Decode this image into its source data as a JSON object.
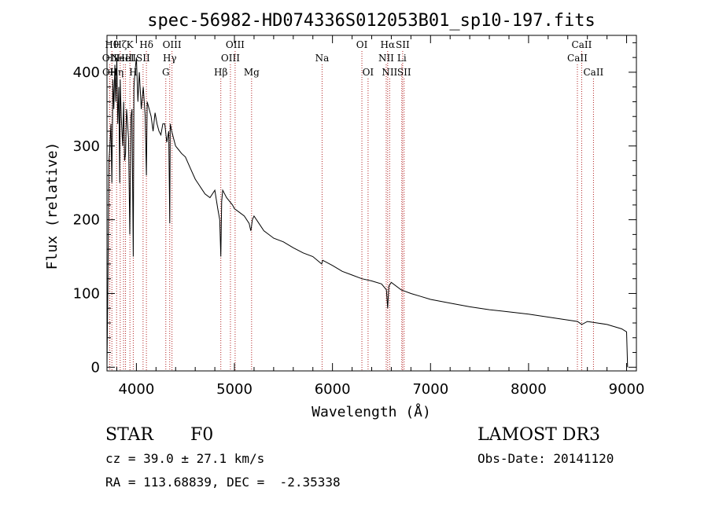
{
  "chart_data": {
    "type": "line",
    "title": "spec-56982-HD074336S012053B01_sp10-197.fits",
    "xlabel": "Wavelength (Å)",
    "ylabel": "Flux (relative)",
    "xlim": [
      3700,
      9100
    ],
    "ylim": [
      -5,
      450
    ],
    "xticks": [
      4000,
      5000,
      6000,
      7000,
      8000,
      9000
    ],
    "yticks": [
      0,
      100,
      200,
      300,
      400
    ],
    "series": [
      {
        "name": "spectrum",
        "x": [
          3700,
          3710,
          3720,
          3730,
          3740,
          3750,
          3760,
          3770,
          3780,
          3790,
          3800,
          3810,
          3820,
          3830,
          3835,
          3845,
          3860,
          3870,
          3880,
          3889,
          3900,
          3910,
          3920,
          3933,
          3945,
          3955,
          3960,
          3968,
          3975,
          3985,
          4000,
          4015,
          4030,
          4050,
          4070,
          4090,
          4102,
          4110,
          4130,
          4150,
          4170,
          4190,
          4210,
          4230,
          4250,
          4270,
          4290,
          4310,
          4330,
          4340,
          4345,
          4360,
          4380,
          4400,
          4430,
          4460,
          4500,
          4550,
          4600,
          4650,
          4700,
          4750,
          4800,
          4830,
          4850,
          4861,
          4870,
          4880,
          4900,
          4920,
          4950,
          4980,
          5000,
          5050,
          5100,
          5150,
          5167,
          5173,
          5183,
          5200,
          5250,
          5300,
          5400,
          5500,
          5600,
          5700,
          5800,
          5890,
          5900,
          6000,
          6100,
          6200,
          6300,
          6400,
          6500,
          6550,
          6563,
          6575,
          6600,
          6700,
          6800,
          6900,
          7000,
          7200,
          7400,
          7600,
          7800,
          8000,
          8200,
          8400,
          8500,
          8542,
          8600,
          8700,
          8800,
          8900,
          8950,
          9000,
          9010
        ],
        "y": [
          0,
          120,
          280,
          300,
          330,
          250,
          390,
          350,
          410,
          360,
          420,
          330,
          380,
          250,
          390,
          340,
          300,
          360,
          280,
          290,
          350,
          330,
          310,
          180,
          340,
          350,
          270,
          150,
          380,
          400,
          420,
          360,
          400,
          350,
          380,
          340,
          260,
          360,
          350,
          340,
          320,
          345,
          330,
          320,
          315,
          330,
          330,
          305,
          320,
          195,
          330,
          320,
          310,
          300,
          295,
          290,
          285,
          270,
          255,
          245,
          235,
          230,
          240,
          215,
          200,
          150,
          225,
          240,
          235,
          230,
          225,
          220,
          215,
          210,
          205,
          195,
          185,
          190,
          200,
          205,
          195,
          185,
          175,
          170,
          162,
          155,
          150,
          140,
          145,
          138,
          130,
          125,
          120,
          117,
          113,
          105,
          80,
          110,
          115,
          105,
          100,
          96,
          92,
          87,
          82,
          78,
          75,
          72,
          68,
          64,
          62,
          58,
          62,
          60,
          58,
          54,
          52,
          48,
          0
        ]
      }
    ],
    "lines": [
      {
        "w": 3727,
        "label": "OII",
        "row": 2
      },
      {
        "w": 3729,
        "label": "OII",
        "row": 3
      },
      {
        "w": 3750,
        "label": "Hθ",
        "row": 1
      },
      {
        "w": 3798,
        "label": "Hη",
        "row": 3
      },
      {
        "w": 3835,
        "label": "Hζ",
        "row": 1
      },
      {
        "w": 3869,
        "label": "NeIII",
        "row": 2
      },
      {
        "w": 3889,
        "label": "HeI",
        "row": 2
      },
      {
        "w": 3934,
        "label": "K",
        "row": 1
      },
      {
        "w": 3968,
        "label": "H",
        "row": 3
      },
      {
        "w": 4068,
        "label": "SII",
        "row": 2
      },
      {
        "w": 4102,
        "label": "Hδ",
        "row": 1
      },
      {
        "w": 4300,
        "label": "G",
        "row": 3
      },
      {
        "w": 4340,
        "label": "Hγ",
        "row": 2
      },
      {
        "w": 4363,
        "label": "OIII",
        "row": 1
      },
      {
        "w": 4861,
        "label": "Hβ",
        "row": 3
      },
      {
        "w": 4959,
        "label": "OIII",
        "row": 2
      },
      {
        "w": 5007,
        "label": "OIII",
        "row": 1
      },
      {
        "w": 5175,
        "label": "Mg",
        "row": 3
      },
      {
        "w": 5894,
        "label": "Na",
        "row": 2
      },
      {
        "w": 6300,
        "label": "OI",
        "row": 1
      },
      {
        "w": 6363,
        "label": "OI",
        "row": 3
      },
      {
        "w": 6548,
        "label": "NII",
        "row": 2
      },
      {
        "w": 6563,
        "label": "Hα",
        "row": 1
      },
      {
        "w": 6583,
        "label": "NII",
        "row": 3
      },
      {
        "w": 6707,
        "label": "Li",
        "row": 2
      },
      {
        "w": 6716,
        "label": "SII",
        "row": 1
      },
      {
        "w": 6731,
        "label": "SII",
        "row": 3
      },
      {
        "w": 8498,
        "label": "CaII",
        "row": 2
      },
      {
        "w": 8542,
        "label": "CaII",
        "row": 1
      },
      {
        "w": 8662,
        "label": "CaII",
        "row": 3
      }
    ]
  },
  "info": {
    "object_class": "STAR",
    "subclass": "F0",
    "survey": "LAMOST DR3",
    "cz": "cz = 39.0 ± 27.1 km/s",
    "obs_date": "Obs-Date: 20141120",
    "coords": "RA = 113.68839, DEC =  -2.35338"
  },
  "colors": {
    "axis": "#000000",
    "spectrum": "#000000",
    "line_marker": "#b22222"
  }
}
